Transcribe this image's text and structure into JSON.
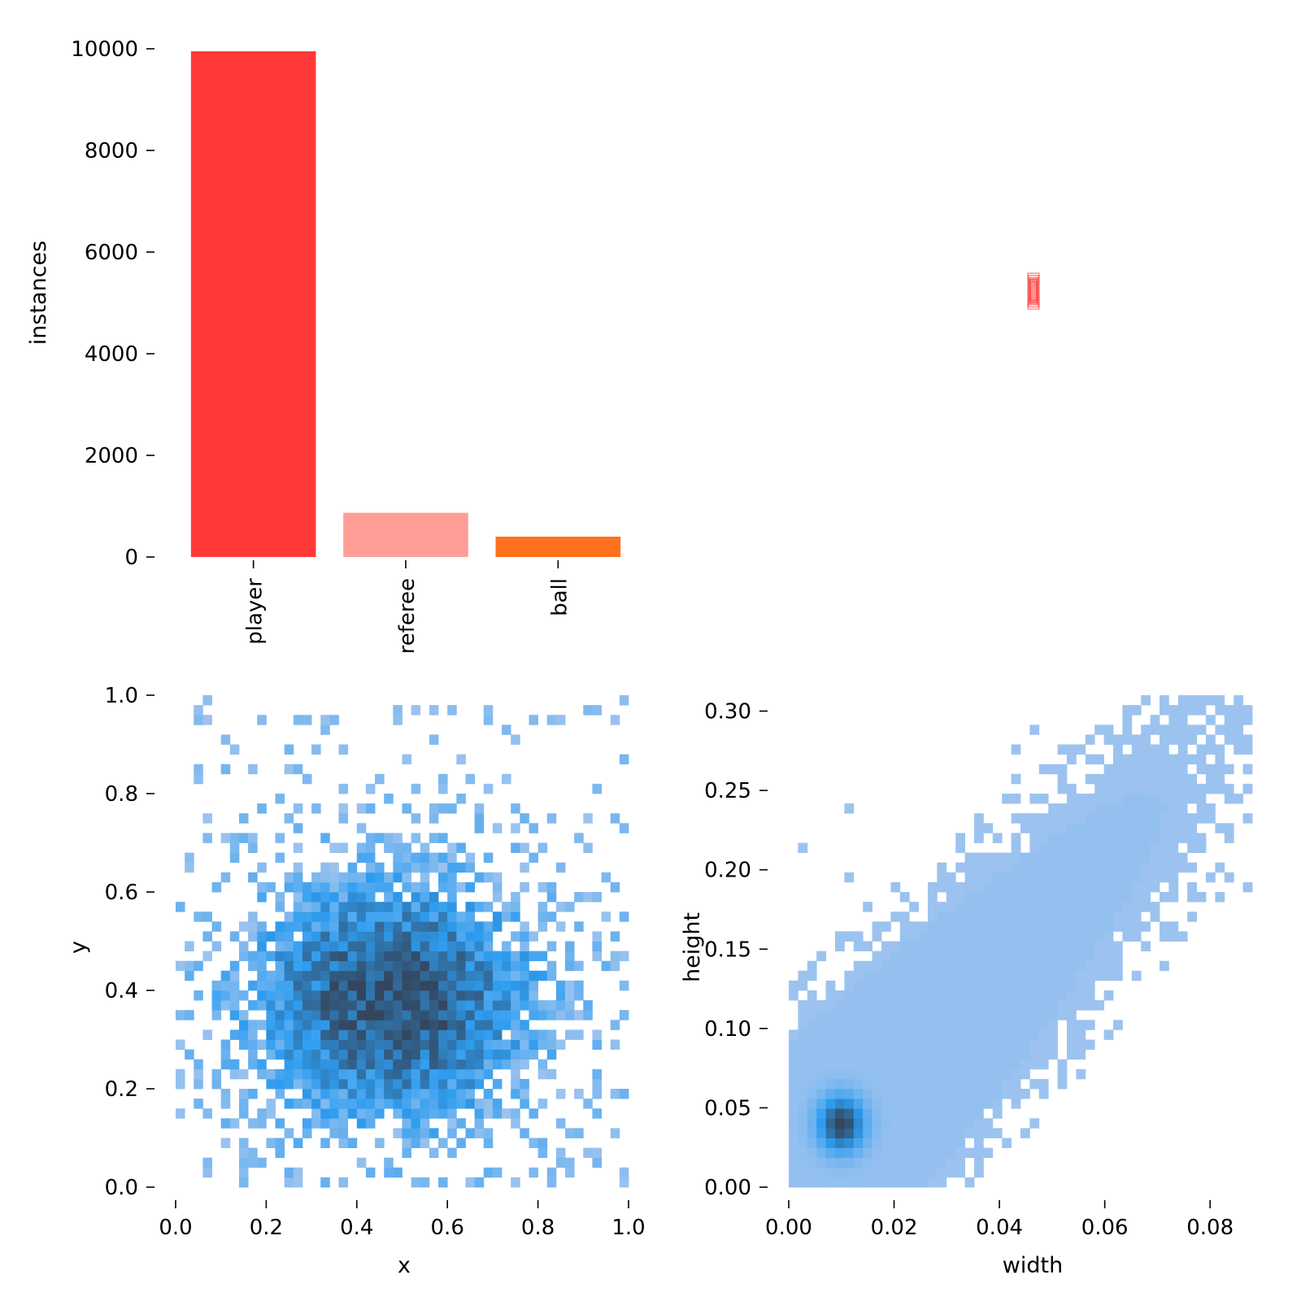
{
  "chart_data": [
    {
      "id": "class-counts",
      "type": "bar",
      "ylabel": "instances",
      "ylim": [
        0,
        10000
      ],
      "yticks": [
        0,
        2000,
        4000,
        6000,
        8000,
        10000
      ],
      "yticklabels": [
        "0",
        "2000",
        "4000",
        "6000",
        "8000",
        "10000"
      ],
      "categories": [
        "player",
        "referee",
        "ball"
      ],
      "values": [
        9950,
        870,
        400
      ],
      "colors": [
        "#ff3838",
        "#ff9d97",
        "#ff701f"
      ]
    },
    {
      "id": "box-overlay",
      "type": "scatter",
      "description_items": [],
      "boxes": [
        {
          "cx": 0.5,
          "cy": 0.5,
          "w": 0.02,
          "h": 0.06,
          "color": "#ff3838"
        }
      ],
      "xlim": [
        0,
        1
      ],
      "ylim": [
        0,
        1
      ]
    },
    {
      "id": "xy-hist",
      "type": "heatmap",
      "xlabel": "x",
      "ylabel": "y",
      "xlim": [
        0,
        1
      ],
      "ylim": [
        0,
        1
      ],
      "xticks": [
        0.0,
        0.2,
        0.4,
        0.6,
        0.8,
        1.0
      ],
      "xticklabels": [
        "0.0",
        "0.2",
        "0.4",
        "0.6",
        "0.8",
        "1.0"
      ],
      "yticks": [
        0.0,
        0.2,
        0.4,
        0.6,
        0.8,
        1.0
      ],
      "yticklabels": [
        "0.0",
        "0.2",
        "0.4",
        "0.6",
        "0.8",
        "1.0"
      ],
      "bins": 50,
      "center": [
        0.48,
        0.38
      ],
      "spread": [
        0.22,
        0.17
      ]
    },
    {
      "id": "wh-hist",
      "type": "heatmap",
      "xlabel": "width",
      "ylabel": "height",
      "xlim": [
        0,
        0.088
      ],
      "ylim": [
        0,
        0.31
      ],
      "xticks": [
        0.0,
        0.02,
        0.04,
        0.06,
        0.08
      ],
      "xticklabels": [
        "0.00",
        "0.02",
        "0.04",
        "0.06",
        "0.08"
      ],
      "yticks": [
        0.0,
        0.05,
        0.1,
        0.15,
        0.2,
        0.25,
        0.3
      ],
      "yticklabels": [
        "0.00",
        "0.05",
        "0.10",
        "0.15",
        "0.20",
        "0.25",
        "0.30"
      ],
      "peak": [
        0.01,
        0.04
      ]
    }
  ],
  "colors": {
    "hist_light": "#a8c7ef",
    "hist_mid": "#2e9df0",
    "hist_dark": "#33465e"
  }
}
